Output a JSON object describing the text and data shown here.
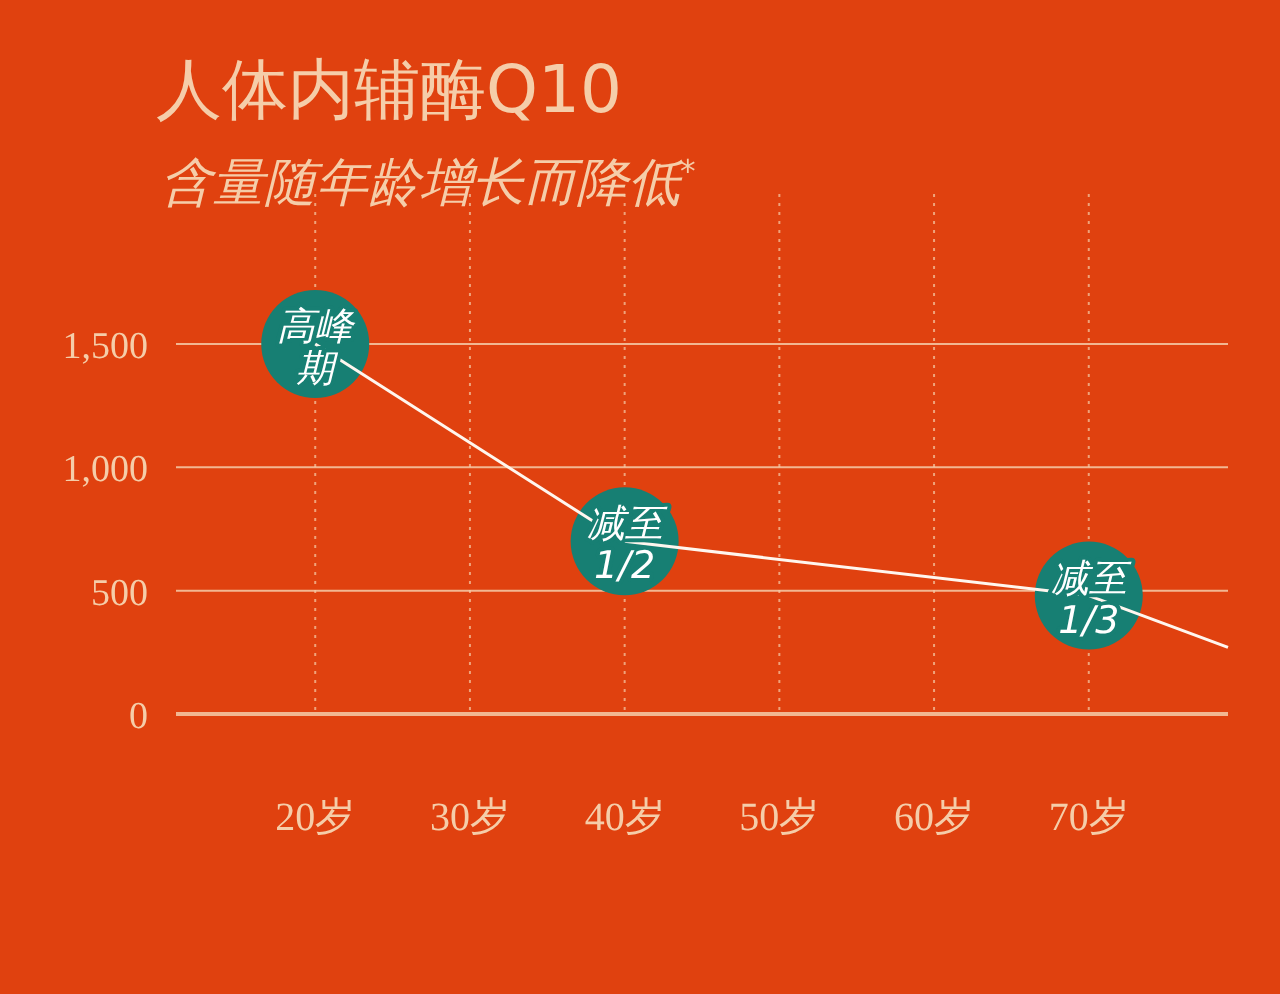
{
  "chart_data": {
    "type": "line",
    "title": "人体内辅酶Q10",
    "subtitle": "含量随年龄增长而降低$^{*}$",
    "x": [
      20,
      40,
      70,
      79
    ],
    "series": [
      {
        "color": "#fff6ee",
        "values": [
          1500,
          700,
          480,
          270
        ]
      }
    ],
    "xlim": [
      11,
      79
    ],
    "xticks": [
      {
        "value": 20,
        "label": "20岁"
      },
      {
        "value": 30,
        "label": "30岁"
      },
      {
        "value": 40,
        "label": "40岁"
      },
      {
        "value": 50,
        "label": "50岁"
      },
      {
        "value": 60,
        "label": "60岁"
      },
      {
        "value": 70,
        "label": "70岁"
      }
    ],
    "ylim": [
      0,
      1500
    ],
    "yticks": [
      {
        "value": 0,
        "label": "0"
      },
      {
        "value": 500,
        "label": "500"
      },
      {
        "value": 1000,
        "label": "1,000"
      },
      {
        "value": 1500,
        "label": "1,500"
      }
    ],
    "grid": true,
    "marker": "none",
    "line_style": "solid",
    "annotations": [
      {
        "text": "高峰期",
        "x": 20,
        "y": 1500
      },
      {
        "text": "减至1/2",
        "x": 40,
        "y": 700
      },
      {
        "text": "减至1/3",
        "x": 70,
        "y": 480
      }
    ]
  }
}
